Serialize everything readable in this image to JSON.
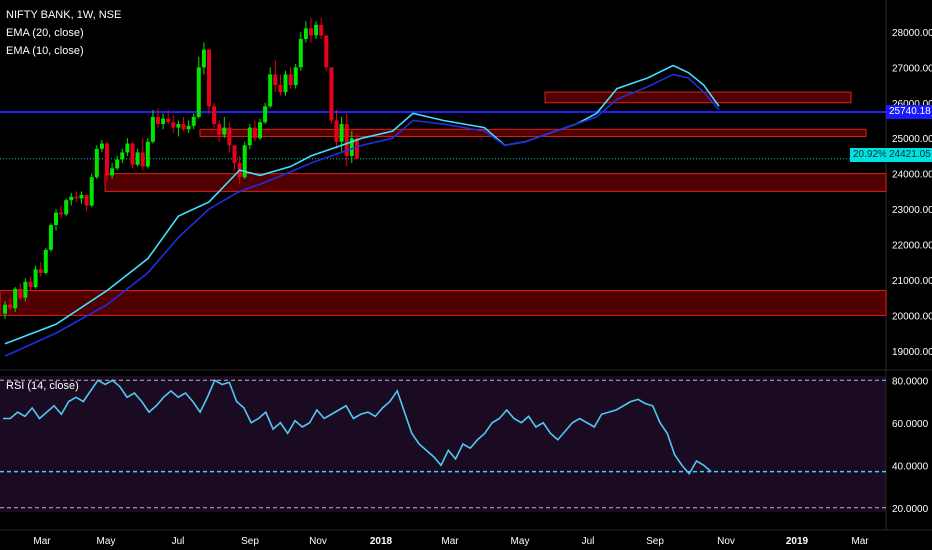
{
  "legend": {
    "symbol": "NIFTY BANK, 1W, NSE",
    "ema20": "EMA (20, close)",
    "ema10": "EMA (10, close)",
    "rsi": "RSI (14, close)"
  },
  "price_tags": {
    "blue_line": "25740.18",
    "pct": "20.92%",
    "last": "24421.05"
  },
  "colors": {
    "background": "#000000",
    "up": "#00e600",
    "down": "#e8001c",
    "ema10": "#40e0ff",
    "ema20": "#1f2ee0",
    "zone_fill": "#6b0000",
    "zone_border": "#e0201c",
    "h_line": "#2020ff",
    "rsi_line": "#4fc8f0",
    "rsi_bg": "#1a0a22"
  },
  "chart_data": [
    {
      "type": "candlestick",
      "title": "NIFTY BANK, 1W, NSE",
      "x_ticks": [
        "Mar",
        "May",
        "Jul",
        "Sep",
        "Nov",
        "2018",
        "Mar",
        "May",
        "Jul",
        "Sep",
        "Nov",
        "2019",
        "Mar"
      ],
      "y_ticks": [
        "28000.00",
        "27000.00",
        "26000.00",
        "25000.00",
        "24000.00",
        "23000.00",
        "22000.00",
        "21000.00",
        "20000.00",
        "19000.00"
      ],
      "ylim": [
        18600,
        28900
      ],
      "series": [
        {
          "name": "EMA (10, close)",
          "points": [
            [
              0,
              19200
            ],
            [
              10,
              19750
            ],
            [
              20,
              20700
            ],
            [
              28,
              21600
            ],
            [
              34,
              22800
            ],
            [
              40,
              23200
            ],
            [
              46,
              24100
            ],
            [
              50,
              23950
            ],
            [
              56,
              24200
            ],
            [
              60,
              24500
            ],
            [
              64,
              24700
            ],
            [
              70,
              25000
            ],
            [
              76,
              25200
            ],
            [
              80,
              25700
            ],
            [
              86,
              25500
            ],
            [
              94,
              25300
            ],
            [
              98,
              24800
            ],
            [
              102,
              24900
            ],
            [
              106,
              25100
            ],
            [
              112,
              25400
            ],
            [
              116,
              25700
            ],
            [
              120,
              26400
            ],
            [
              126,
              26700
            ],
            [
              131,
              27050
            ],
            [
              134,
              26850
            ],
            [
              137,
              26500
            ],
            [
              140,
              25900
            ]
          ]
        },
        {
          "name": "EMA (20, close)",
          "points": [
            [
              0,
              18850
            ],
            [
              10,
              19500
            ],
            [
              20,
              20300
            ],
            [
              28,
              21200
            ],
            [
              34,
              22200
            ],
            [
              40,
              23000
            ],
            [
              46,
              23500
            ],
            [
              50,
              23700
            ],
            [
              56,
              24050
            ],
            [
              60,
              24300
            ],
            [
              64,
              24500
            ],
            [
              70,
              24800
            ],
            [
              76,
              25000
            ],
            [
              80,
              25500
            ],
            [
              86,
              25400
            ],
            [
              94,
              25200
            ],
            [
              98,
              24800
            ],
            [
              102,
              24900
            ],
            [
              106,
              25100
            ],
            [
              112,
              25400
            ],
            [
              116,
              25600
            ],
            [
              120,
              26100
            ],
            [
              126,
              26450
            ],
            [
              131,
              26800
            ],
            [
              134,
              26700
            ],
            [
              137,
              26300
            ],
            [
              140,
              25800
            ]
          ]
        }
      ],
      "candles_ohlc": [
        [
          20050,
          20400,
          19900,
          20300
        ],
        [
          20300,
          20500,
          20150,
          20200
        ],
        [
          20200,
          20800,
          20100,
          20750
        ],
        [
          20750,
          20900,
          20450,
          20500
        ],
        [
          20500,
          21050,
          20400,
          20950
        ],
        [
          20950,
          21100,
          20700,
          20800
        ],
        [
          20800,
          21400,
          20750,
          21300
        ],
        [
          21300,
          21500,
          21100,
          21200
        ],
        [
          21200,
          21900,
          21150,
          21850
        ],
        [
          21850,
          22600,
          21800,
          22550
        ],
        [
          22550,
          23000,
          22400,
          22900
        ],
        [
          22900,
          23100,
          22750,
          22850
        ],
        [
          22850,
          23300,
          22800,
          23250
        ],
        [
          23250,
          23450,
          23100,
          23350
        ],
        [
          23350,
          23500,
          23200,
          23300
        ],
        [
          23300,
          23500,
          23150,
          23400
        ],
        [
          23400,
          23350,
          22950,
          23100
        ],
        [
          23100,
          24000,
          23050,
          23900
        ],
        [
          23900,
          24800,
          23850,
          24700
        ],
        [
          24700,
          24950,
          24600,
          24850
        ],
        [
          24850,
          24900,
          23800,
          23950
        ],
        [
          23950,
          24300,
          23850,
          24150
        ],
        [
          24150,
          24500,
          24100,
          24400
        ],
        [
          24400,
          24700,
          24300,
          24600
        ],
        [
          24600,
          25000,
          24500,
          24850
        ],
        [
          24850,
          24900,
          24150,
          24250
        ],
        [
          24250,
          24700,
          24200,
          24600
        ],
        [
          24600,
          25000,
          24100,
          24200
        ],
        [
          24200,
          25000,
          24150,
          24900
        ],
        [
          24900,
          25800,
          24850,
          25600
        ],
        [
          25600,
          25850,
          25300,
          25400
        ],
        [
          25400,
          25700,
          25250,
          25550
        ],
        [
          25550,
          25800,
          25400,
          25450
        ],
        [
          25450,
          25650,
          25150,
          25300
        ],
        [
          25300,
          25500,
          25050,
          25400
        ],
        [
          25400,
          25600,
          25200,
          25250
        ],
        [
          25250,
          25500,
          25150,
          25350
        ],
        [
          25350,
          25700,
          25250,
          25600
        ],
        [
          25600,
          27300,
          25550,
          27000
        ],
        [
          27000,
          27700,
          26800,
          27500
        ],
        [
          27500,
          26900,
          25700,
          25900
        ],
        [
          25900,
          26000,
          25300,
          25400
        ],
        [
          25400,
          25500,
          24900,
          25100
        ],
        [
          25100,
          25600,
          25000,
          25300
        ],
        [
          25300,
          25450,
          24600,
          24800
        ],
        [
          24800,
          24700,
          24100,
          24300
        ],
        [
          24300,
          24500,
          23700,
          23900
        ],
        [
          23900,
          24900,
          23850,
          24800
        ],
        [
          24800,
          25400,
          24700,
          25300
        ],
        [
          25300,
          25500,
          24900,
          25000
        ],
        [
          25000,
          25550,
          24950,
          25450
        ],
        [
          25450,
          26000,
          25400,
          25900
        ],
        [
          25900,
          27000,
          25850,
          26800
        ],
        [
          26800,
          27200,
          26300,
          26500
        ],
        [
          26500,
          26800,
          26200,
          26300
        ],
        [
          26300,
          26900,
          26200,
          26800
        ],
        [
          26800,
          27000,
          26400,
          26500
        ],
        [
          26500,
          27100,
          26400,
          27000
        ],
        [
          27000,
          28000,
          26900,
          27800
        ],
        [
          27800,
          28300,
          27700,
          28100
        ],
        [
          28100,
          28400,
          27700,
          27900
        ],
        [
          27900,
          28300,
          27800,
          28200
        ],
        [
          28200,
          28400,
          27800,
          27900
        ],
        [
          27900,
          27700,
          26900,
          27000
        ],
        [
          27000,
          26700,
          25400,
          25500
        ],
        [
          25500,
          25800,
          24700,
          24900
        ],
        [
          24900,
          25600,
          24600,
          25400
        ],
        [
          25400,
          25700,
          24200,
          24500
        ],
        [
          24500,
          25200,
          24300,
          25000
        ],
        [
          25000,
          25100,
          24400,
          24421
        ]
      ],
      "zones": [
        [
          25050,
          25250
        ],
        [
          26000,
          26300
        ],
        [
          23500,
          24000
        ],
        [
          20000,
          20700
        ]
      ],
      "h_line": 25740.18,
      "last_price": 24421.05
    },
    {
      "type": "line",
      "title": "RSI (14, close)",
      "y_ticks": [
        "80.0000",
        "60.0000",
        "40.0000",
        "20.0000"
      ],
      "ylim": [
        18,
        82
      ],
      "levels": [
        80,
        37,
        20
      ],
      "values": [
        62,
        62,
        65,
        63,
        67,
        62,
        65,
        68,
        64,
        70,
        72,
        70,
        75,
        80,
        78,
        80,
        77,
        72,
        74,
        70,
        65,
        68,
        72,
        75,
        72,
        74,
        70,
        65,
        72,
        80,
        78,
        79,
        70,
        67,
        60,
        62,
        65,
        57,
        60,
        55,
        61,
        58,
        60,
        66,
        62,
        64,
        66,
        68,
        62,
        64,
        65,
        63,
        67,
        70,
        75,
        65,
        55,
        50,
        47,
        44,
        40,
        47,
        43,
        50,
        48,
        52,
        55,
        60,
        62,
        66,
        62,
        60,
        63,
        58,
        60,
        55,
        52,
        56,
        60,
        62,
        60,
        58,
        64,
        65,
        66,
        68,
        70,
        71,
        69,
        68,
        60,
        55,
        45,
        40,
        36,
        42,
        40,
        37
      ]
    }
  ]
}
